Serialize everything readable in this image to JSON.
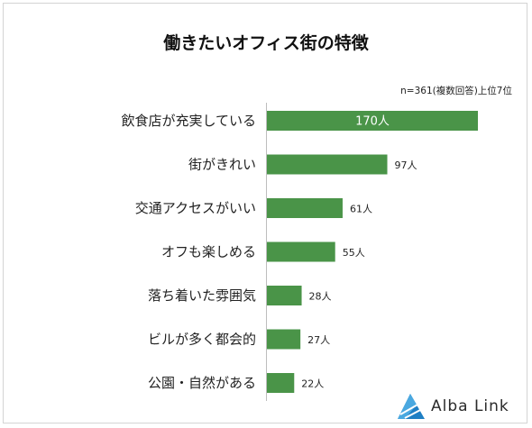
{
  "chart_data": {
    "type": "bar",
    "orientation": "horizontal",
    "title": "働きたいオフィス街の特徴",
    "note": "n=361(複数回答)上位7位",
    "categories": [
      "飲食店が充実している",
      "街がきれい",
      "交通アクセスがいい",
      "オフも楽しめる",
      "落ち着いた雰囲気",
      "ビルが多く都会的",
      "公園・自然がある"
    ],
    "values": [
      170,
      97,
      61,
      55,
      28,
      27,
      22
    ],
    "labels": [
      "170人",
      "97人",
      "61人",
      "55人",
      "28人",
      "27人",
      "22人"
    ],
    "xlim": [
      0,
      170
    ],
    "bar_color": "#4a9448",
    "grid": false
  },
  "brand": {
    "name": "Alba Link",
    "color": "#1f7fc4"
  }
}
